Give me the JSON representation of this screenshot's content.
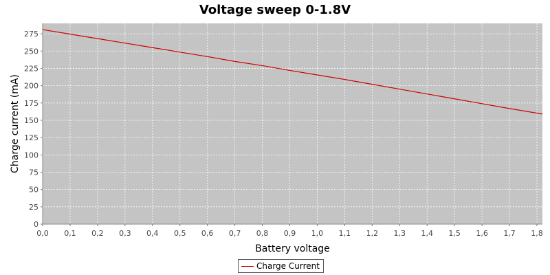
{
  "chart_data": {
    "type": "line",
    "title": "Voltage sweep 0-1.8V",
    "xlabel": "Battery voltage",
    "ylabel": "Charge current (mA)",
    "xlim": [
      0.0,
      1.82
    ],
    "ylim": [
      0,
      290
    ],
    "x_ticks": [
      "0,0",
      "0,1",
      "0,2",
      "0,3",
      "0,4",
      "0,5",
      "0,6",
      "0,7",
      "0,8",
      "0,9",
      "1,0",
      "1,1",
      "1,2",
      "1,3",
      "1,4",
      "1,5",
      "1,6",
      "1,7",
      "1,8"
    ],
    "y_ticks": [
      "0",
      "25",
      "50",
      "75",
      "100",
      "125",
      "150",
      "175",
      "200",
      "225",
      "250",
      "275"
    ],
    "grid": true,
    "legend_position": "bottom-center",
    "background_color": "#c4c4c4",
    "series": [
      {
        "name": "Charge Current",
        "color": "#cc0000",
        "x": [
          0.0,
          0.1,
          0.2,
          0.3,
          0.4,
          0.5,
          0.6,
          0.7,
          0.8,
          0.9,
          1.0,
          1.1,
          1.2,
          1.3,
          1.4,
          1.5,
          1.6,
          1.7,
          1.82
        ],
        "y": [
          281,
          274.5,
          268,
          261.5,
          255,
          248.5,
          242,
          235,
          229,
          222,
          215.5,
          209,
          202,
          195,
          188,
          181,
          174,
          167,
          159
        ]
      }
    ]
  }
}
